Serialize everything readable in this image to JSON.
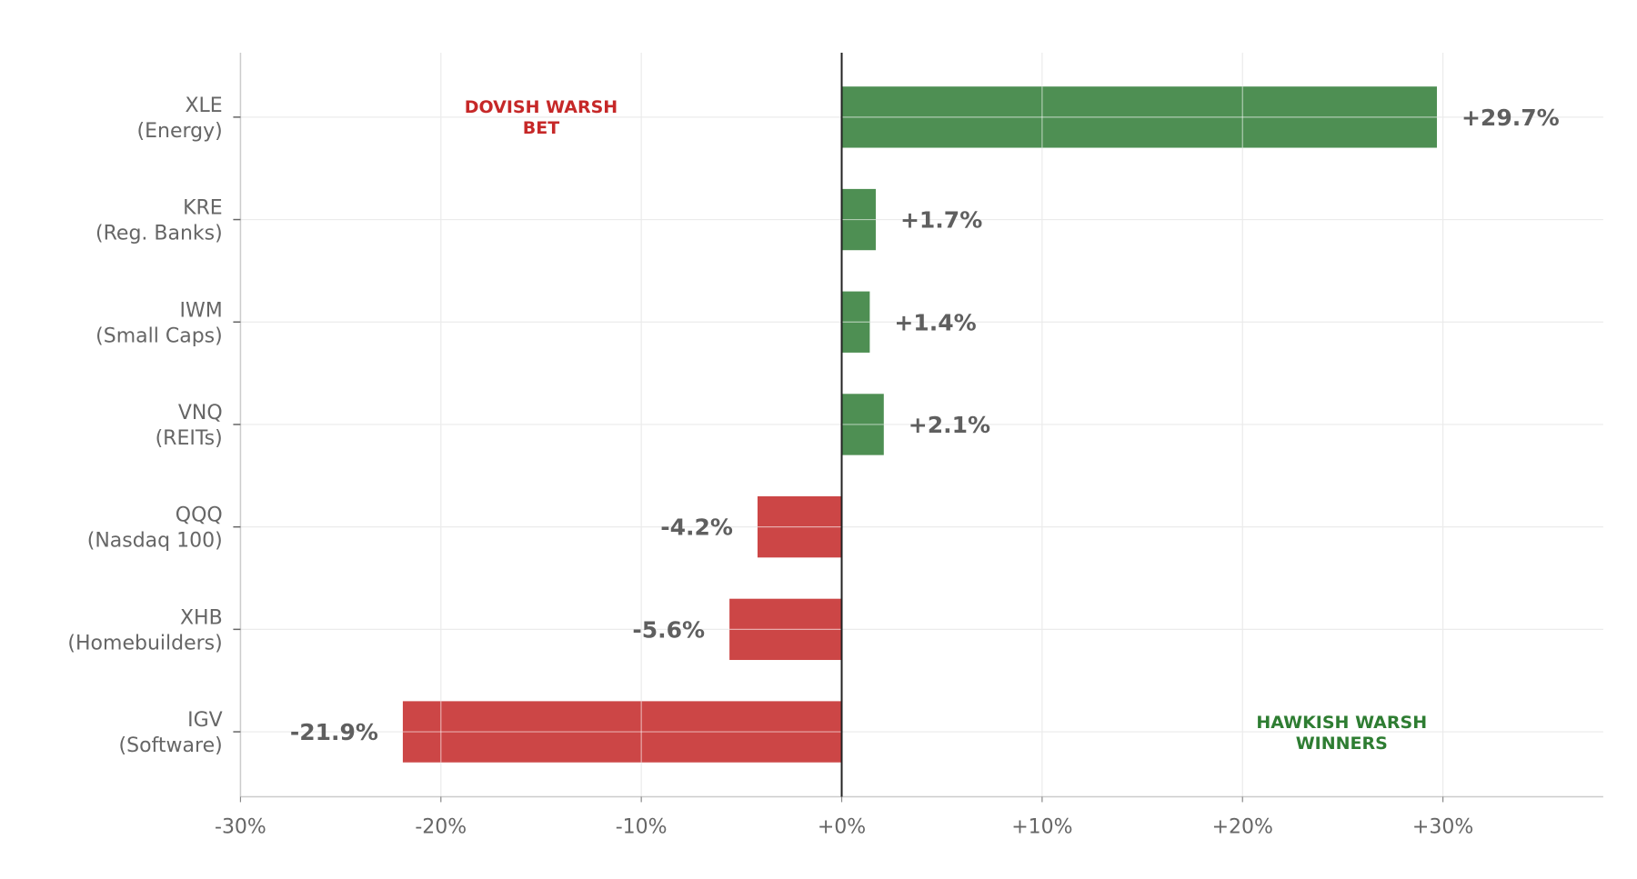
{
  "chart_data": {
    "type": "bar",
    "orientation": "horizontal",
    "categories": [
      [
        "XLE",
        "(Energy)"
      ],
      [
        "KRE",
        "(Reg. Banks)"
      ],
      [
        "IWM",
        "(Small Caps)"
      ],
      [
        "VNQ",
        "(REITs)"
      ],
      [
        "QQQ",
        "(Nasdaq 100)"
      ],
      [
        "XHB",
        "(Homebuilders)"
      ],
      [
        "IGV",
        "(Software)"
      ]
    ],
    "values": [
      29.7,
      1.7,
      1.4,
      2.1,
      -4.2,
      -5.6,
      -21.9
    ],
    "value_labels": [
      "+29.7%",
      "+1.7%",
      "+1.4%",
      "+2.1%",
      "-4.2%",
      "-5.6%",
      "-21.9%"
    ],
    "xlim": [
      -30,
      38
    ],
    "xticks": [
      -30,
      -20,
      -10,
      0,
      10,
      20,
      30
    ],
    "xtick_labels": [
      "-30%",
      "-20%",
      "-10%",
      "+0%",
      "+10%",
      "+20%",
      "+30%"
    ],
    "grid": true,
    "colors": {
      "positive": "#4e8f53",
      "negative": "#cc4646",
      "grid": "#ebebeb",
      "axis": "#cccccc",
      "zero_line": "#222222"
    },
    "annotations": [
      {
        "lines": [
          "DOVISH WARSH",
          "BET"
        ],
        "color": "#c62828",
        "placement": "top-left"
      },
      {
        "lines": [
          "HAWKISH WARSH",
          "WINNERS"
        ],
        "color": "#2e7d32",
        "placement": "bottom-right"
      }
    ]
  }
}
